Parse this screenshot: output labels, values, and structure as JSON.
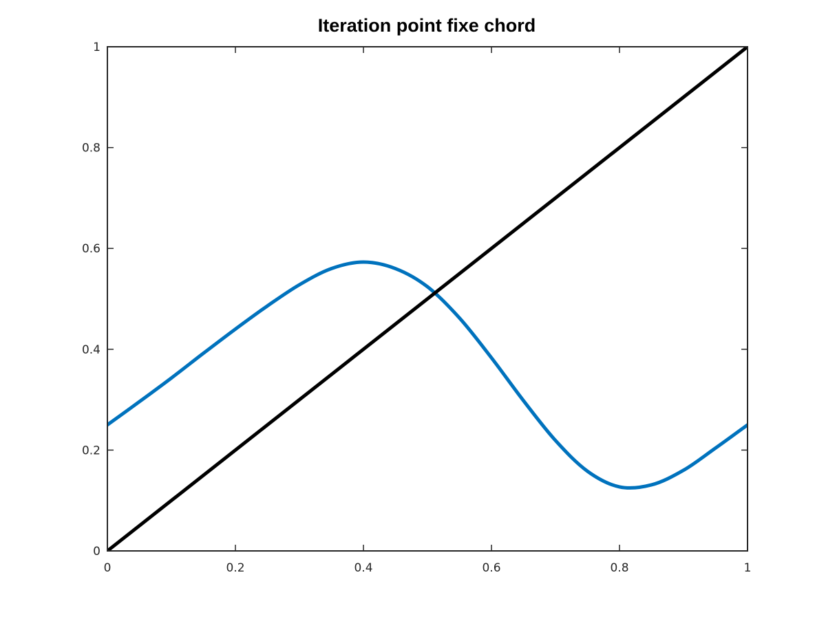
{
  "chart_data": {
    "type": "line",
    "title": "Iteration point fixe chord",
    "xlabel": "",
    "ylabel": "",
    "xlim": [
      0,
      1
    ],
    "ylim": [
      0,
      1
    ],
    "x_ticks": [
      0,
      0.2,
      0.4,
      0.6,
      0.8,
      1
    ],
    "y_ticks": [
      0,
      0.2,
      0.4,
      0.6,
      0.8,
      1
    ],
    "x_tick_labels": [
      "0",
      "0.2",
      "0.4",
      "0.6",
      "0.8",
      "1"
    ],
    "y_tick_labels": [
      "0",
      "0.2",
      "0.4",
      "0.6",
      "0.8",
      "1"
    ],
    "grid": false,
    "box": true,
    "series": [
      {
        "color": "#0072BD",
        "x": [
          0,
          0.05,
          0.1,
          0.15,
          0.2,
          0.25,
          0.3,
          0.35,
          0.4,
          0.45,
          0.5,
          0.55,
          0.6,
          0.65,
          0.7,
          0.75,
          0.8,
          0.85,
          0.9,
          0.95,
          1
        ],
        "y": [
          0.25,
          0.296,
          0.343,
          0.392,
          0.44,
          0.486,
          0.528,
          0.56,
          0.573,
          0.56,
          0.524,
          0.462,
          0.383,
          0.298,
          0.219,
          0.158,
          0.127,
          0.131,
          0.16,
          0.204,
          0.25
        ]
      },
      {
        "color": "#000000",
        "x": [
          0,
          1
        ],
        "y": [
          0,
          1
        ]
      }
    ]
  }
}
